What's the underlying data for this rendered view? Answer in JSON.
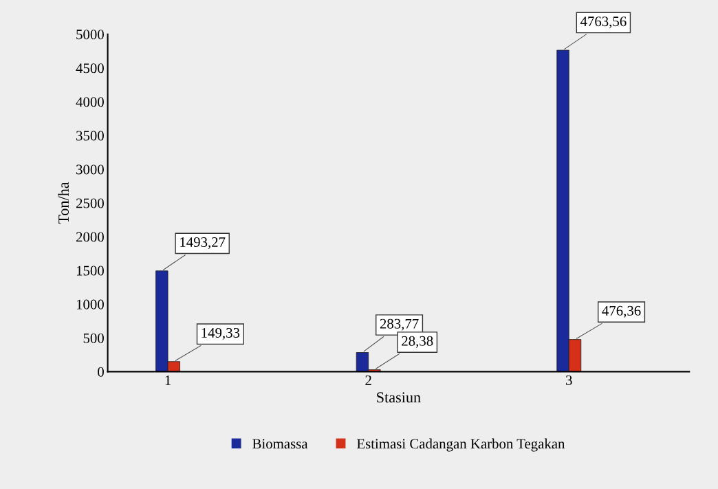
{
  "chart_data": {
    "type": "bar",
    "xlabel": "Stasiun",
    "ylabel": "Ton/ha",
    "categories": [
      "1",
      "2",
      "3"
    ],
    "series": [
      {
        "name": "Biomassa",
        "color": "#1a2a9a",
        "values": [
          1493.27,
          283.77,
          4763.56
        ],
        "value_labels": [
          "1493,27",
          "283,77",
          "4763,56"
        ]
      },
      {
        "name": "Estimasi Cadangan Karbon Tegakan",
        "color": "#d4301a",
        "values": [
          149.33,
          28.38,
          476.36
        ],
        "value_labels": [
          "149,33",
          "28,38",
          "476,36"
        ]
      }
    ],
    "ylim": [
      0,
      5000
    ],
    "yticks": [
      0,
      500,
      1000,
      1500,
      2000,
      2500,
      3000,
      3500,
      4000,
      4500,
      5000
    ],
    "grid": false,
    "legend": "bottom"
  }
}
